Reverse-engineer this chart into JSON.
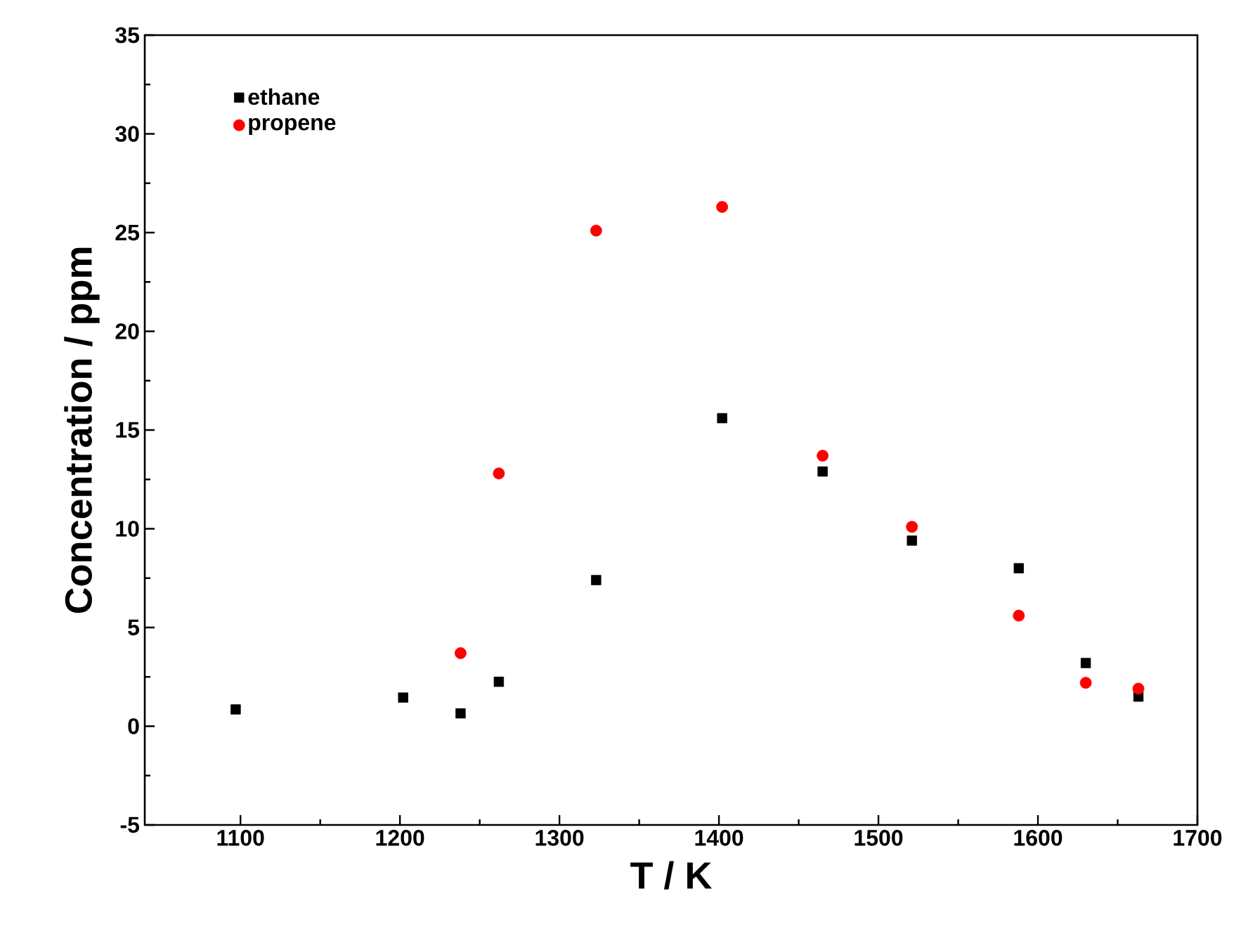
{
  "chart_data": {
    "type": "scatter",
    "xlabel": "T / K",
    "ylabel": "Concentration / ppm",
    "xlim": [
      1040,
      1700
    ],
    "xticks": [
      1100,
      1200,
      1300,
      1400,
      1500,
      1600,
      1700
    ],
    "ylim": [
      -5,
      35
    ],
    "yticks": [
      -5,
      0,
      5,
      10,
      15,
      20,
      25,
      30,
      35
    ],
    "legend": "top left",
    "grid": false,
    "series": [
      {
        "name": "ethane",
        "color": "#000000",
        "marker": "square",
        "x": [
          1097,
          1202,
          1238,
          1262,
          1323,
          1402,
          1465,
          1521,
          1588,
          1630,
          1663
        ],
        "values": [
          0.85,
          1.45,
          0.65,
          2.25,
          7.4,
          15.6,
          12.9,
          9.4,
          8.0,
          3.2,
          1.5
        ]
      },
      {
        "name": "propene",
        "color": "#ff0000",
        "marker": "circle",
        "x": [
          1238,
          1262,
          1323,
          1402,
          1465,
          1521,
          1588,
          1630,
          1663
        ],
        "values": [
          3.7,
          12.8,
          25.1,
          26.3,
          13.7,
          10.1,
          5.6,
          2.2,
          1.9
        ]
      }
    ]
  }
}
